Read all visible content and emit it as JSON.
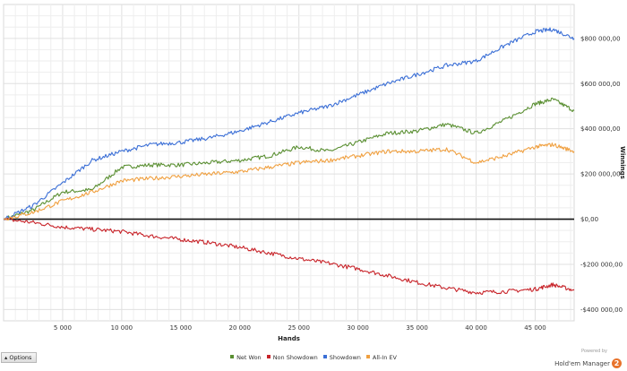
{
  "chart_data": {
    "type": "line",
    "title": "",
    "xlabel": "Hands",
    "ylabel": "Winnings",
    "xlim": [
      0,
      48300
    ],
    "ylim": [
      -450000,
      950000
    ],
    "x_ticks": [
      5000,
      10000,
      15000,
      20000,
      25000,
      30000,
      35000,
      40000,
      45000
    ],
    "x_tick_labels": [
      "5 000",
      "10 000",
      "15 000",
      "20 000",
      "25 000",
      "30 000",
      "35 000",
      "40 000",
      "45 000"
    ],
    "y_ticks": [
      800000,
      600000,
      400000,
      200000,
      0,
      -200000,
      -400000
    ],
    "y_tick_labels": [
      "$800 000,00",
      "$600 000,00",
      "$400 000,00",
      "$200 000,00",
      "$0,00",
      "-$200 000,00",
      "-$400 000,00"
    ],
    "grid": true,
    "legend_position": "bottom-center",
    "x": [
      0,
      2500,
      5000,
      7500,
      10000,
      12500,
      15000,
      17500,
      20000,
      22500,
      25000,
      27500,
      30000,
      32500,
      35000,
      37500,
      40000,
      42500,
      45000,
      46500,
      48300
    ],
    "series": [
      {
        "name": "Net Won",
        "color": "#5a8f32",
        "values": [
          0,
          40000,
          120000,
          130000,
          230000,
          240000,
          240000,
          250000,
          260000,
          280000,
          320000,
          300000,
          340000,
          380000,
          390000,
          420000,
          380000,
          440000,
          510000,
          530000,
          480000
        ]
      },
      {
        "name": "Non Showdown",
        "color": "#c8242a",
        "values": [
          0,
          -15000,
          -35000,
          -45000,
          -55000,
          -75000,
          -90000,
          -105000,
          -125000,
          -150000,
          -175000,
          -195000,
          -220000,
          -250000,
          -280000,
          -305000,
          -325000,
          -320000,
          -310000,
          -290000,
          -315000
        ]
      },
      {
        "name": "Showdown",
        "color": "#3b6fd6",
        "values": [
          0,
          60000,
          160000,
          260000,
          300000,
          330000,
          340000,
          360000,
          390000,
          430000,
          470000,
          500000,
          550000,
          600000,
          640000,
          680000,
          700000,
          770000,
          830000,
          840000,
          800000
        ]
      },
      {
        "name": "All-In EV",
        "color": "#f0a040",
        "values": [
          0,
          30000,
          80000,
          120000,
          170000,
          180000,
          190000,
          200000,
          210000,
          230000,
          250000,
          260000,
          280000,
          300000,
          300000,
          310000,
          250000,
          280000,
          320000,
          330000,
          300000
        ]
      }
    ]
  },
  "controls": {
    "options_label": "Options"
  },
  "branding": {
    "powered_by": "Powered by",
    "name": "Hold'em Manager",
    "logo_text": "2"
  }
}
